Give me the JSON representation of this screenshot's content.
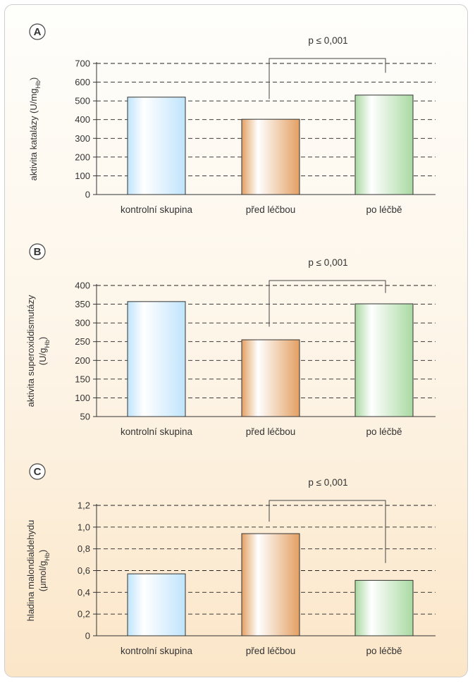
{
  "chart_data": [
    {
      "type": "bar",
      "panel_label": "A",
      "categories": [
        "kontrolní skupina",
        "před léčbou",
        "po léčbě"
      ],
      "values": [
        520,
        402,
        531
      ],
      "ylabel": "aktivita katalázy (U/mgHb)",
      "ylabel_lines": [
        {
          "text": "aktivita katalázy (U/mg",
          "sub": "Hb",
          "tail": ")"
        }
      ],
      "ylim": [
        0,
        700
      ],
      "yticks": [
        0,
        100,
        200,
        300,
        400,
        500,
        600,
        700
      ],
      "ytick_labels": [
        "0",
        "100",
        "200",
        "300",
        "400",
        "500",
        "600",
        "700"
      ],
      "grid": true,
      "annotation": {
        "text": "p ≤ 0,001",
        "from": 1,
        "to": 2,
        "left_drop_to": 510,
        "right_drop_to": 650
      }
    },
    {
      "type": "bar",
      "panel_label": "B",
      "categories": [
        "kontrolní skupina",
        "před léčbou",
        "po léčbě"
      ],
      "values": [
        357,
        255,
        351
      ],
      "ylabel": "aktivita superoxiddismutázy (U/gHb)",
      "ylabel_lines": [
        {
          "text": "aktivita superoxiddismutázy",
          "sub": "",
          "tail": ""
        },
        {
          "text": "(U/g",
          "sub": "Hb",
          "tail": ")"
        }
      ],
      "ylim": [
        50,
        400
      ],
      "yticks": [
        50,
        100,
        150,
        200,
        250,
        300,
        350,
        400
      ],
      "ytick_labels": [
        "50",
        "100",
        "150",
        "200",
        "250",
        "300",
        "350",
        "400"
      ],
      "grid": true,
      "annotation": {
        "text": "p ≤ 0,001",
        "from": 1,
        "to": 2,
        "left_drop_to": 290,
        "right_drop_to": 380
      }
    },
    {
      "type": "bar",
      "panel_label": "C",
      "categories": [
        "kontrolní skupina",
        "před léčbou",
        "po léčbě"
      ],
      "values": [
        0.57,
        0.94,
        0.51
      ],
      "ylabel": "hladina malondialdehydu (μmol/gHb)",
      "ylabel_lines": [
        {
          "text": "hladina malondialdehydu",
          "sub": "",
          "tail": ""
        },
        {
          "text": "(μmol/g",
          "sub": "Hb",
          "tail": ")"
        }
      ],
      "ylim": [
        0,
        1.2
      ],
      "yticks": [
        0,
        0.2,
        0.4,
        0.6,
        0.8,
        1.0,
        1.2
      ],
      "ytick_labels": [
        "0",
        "0,2",
        "0,4",
        "0,6",
        "0,8",
        "1,0",
        "1,2"
      ],
      "grid": true,
      "annotation": {
        "text": "p ≤ 0,001",
        "from": 1,
        "to": 2,
        "left_drop_to": 1.05,
        "right_drop_to": 0.67
      }
    }
  ],
  "colors": {
    "kontrolni": [
      "#ffffff",
      "#bfe4fb"
    ],
    "pred": [
      "#ffffff",
      "#e3a063"
    ],
    "po": [
      "#ffffff",
      "#a9d9a2"
    ],
    "grid": "#222222",
    "bar_stroke": "#333333"
  }
}
